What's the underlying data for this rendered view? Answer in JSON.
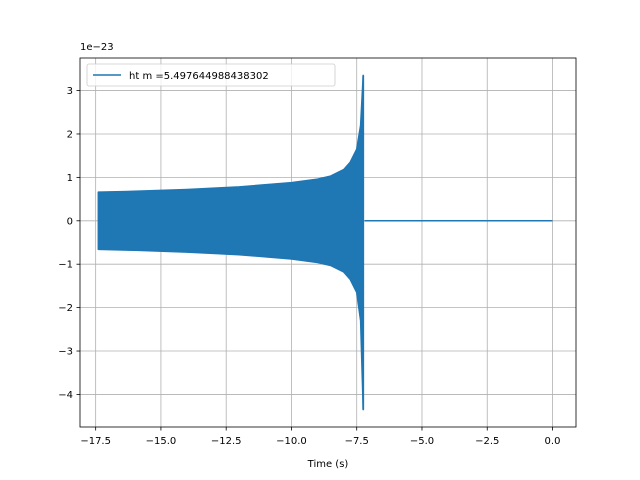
{
  "chart_data": {
    "type": "line",
    "title": "",
    "xlabel": "Time (s)",
    "ylabel": "",
    "y_offset_text": "1e−23",
    "xlim": [
      -18.1,
      0.9
    ],
    "ylim": [
      -4.75,
      3.75
    ],
    "x_ticks": [
      -17.5,
      -15.0,
      -12.5,
      -10.0,
      -7.5,
      -5.0,
      -2.5,
      0.0
    ],
    "x_tick_labels": [
      "−17.5",
      "−15.0",
      "−12.5",
      "−10.0",
      "−7.5",
      "−5.0",
      "−2.5",
      "0.0"
    ],
    "y_ticks": [
      -4,
      -3,
      -2,
      -1,
      0,
      1,
      2,
      3
    ],
    "y_tick_labels": [
      "−4",
      "−3",
      "−2",
      "−1",
      "0",
      "1",
      "2",
      "3"
    ],
    "grid": true,
    "legend_position": "upper-left",
    "series_color": "#1f77b4",
    "series": [
      {
        "name": "ht m =5.497644988438302",
        "envelope_x": [
          -17.4,
          -16.0,
          -14.0,
          -12.0,
          -10.0,
          -9.0,
          -8.5,
          -8.0,
          -7.75,
          -7.5,
          -7.35,
          -7.25
        ],
        "envelope_upper": [
          0.66,
          0.68,
          0.72,
          0.78,
          0.88,
          0.96,
          1.03,
          1.18,
          1.35,
          1.65,
          2.2,
          3.35
        ],
        "envelope_lower": [
          -0.66,
          -0.68,
          -0.72,
          -0.78,
          -0.88,
          -0.96,
          -1.03,
          -1.18,
          -1.35,
          -1.65,
          -2.3,
          -4.35
        ],
        "flat_after": [
          -7.2,
          0.0
        ],
        "flat_value": 0
      }
    ]
  }
}
